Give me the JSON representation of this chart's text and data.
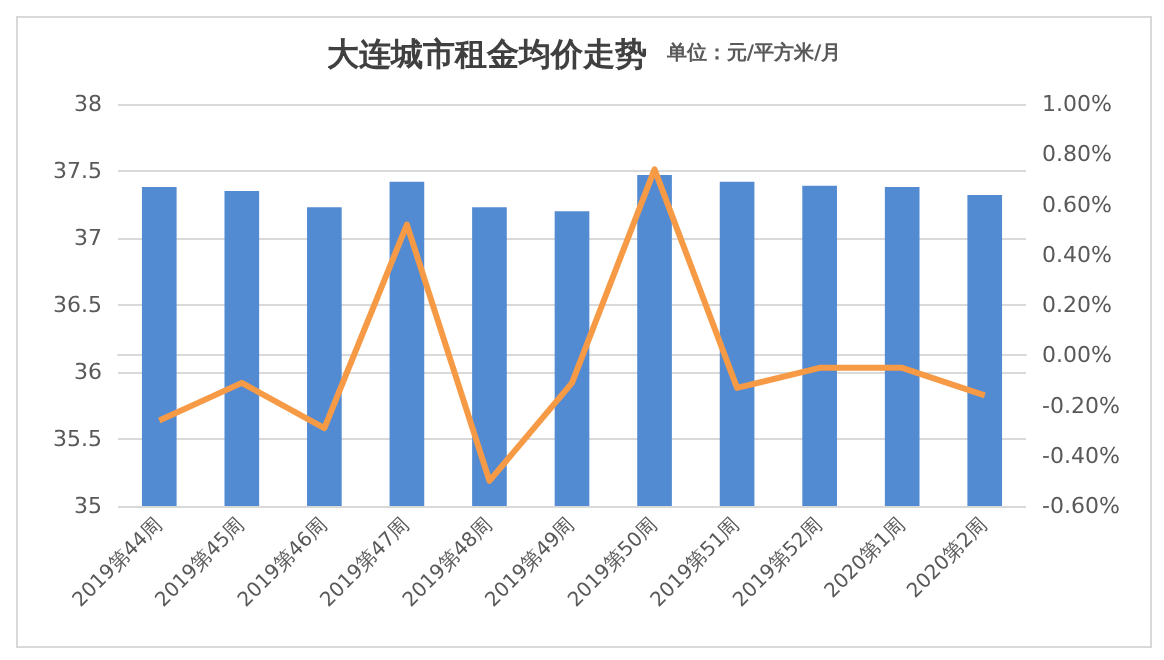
{
  "chart_data": {
    "type": "bar",
    "title": "大连城市租金均价走势",
    "subtitle": "单位：元/平方米/月",
    "categories": [
      "2019第44周",
      "2019第45周",
      "2019第46周",
      "2019第47周",
      "2019第48周",
      "2019第49周",
      "2019第50周",
      "2019第51周",
      "2019第52周",
      "2020第1周",
      "2020第2周"
    ],
    "series": [
      {
        "color": "#538bd3",
        "values": [
          37.38,
          37.35,
          37.23,
          37.42,
          37.23,
          37.2,
          37.47,
          37.42,
          37.39,
          37.38,
          37.32
        ]
      },
      {
        "type": "line",
        "axis": "y2",
        "color": "#f79a46",
        "values": [
          -0.26,
          -0.11,
          -0.29,
          0.52,
          -0.5,
          -0.11,
          0.74,
          -0.13,
          -0.05,
          -0.05,
          -0.16
        ]
      }
    ],
    "ylim": [
      35,
      38
    ],
    "yticks": [
      35,
      35.5,
      36,
      36.5,
      37,
      37.5,
      38
    ],
    "y2lim": [
      -0.6,
      1
    ],
    "y2ticks": [
      {
        "value": -0.6,
        "label": "-0.60%"
      },
      {
        "value": -0.4,
        "label": "-0.40%"
      },
      {
        "value": -0.2,
        "label": "-0.20%"
      },
      {
        "value": 0,
        "label": "0.00%"
      },
      {
        "value": 0.2,
        "label": "0.20%"
      },
      {
        "value": 0.4,
        "label": "0.40%"
      },
      {
        "value": 0.6,
        "label": "0.60%"
      },
      {
        "value": 0.8,
        "label": "0.80%"
      },
      {
        "value": 1,
        "label": "1.00%"
      }
    ],
    "grid": "y",
    "marker": "none",
    "line_style": "solid"
  }
}
